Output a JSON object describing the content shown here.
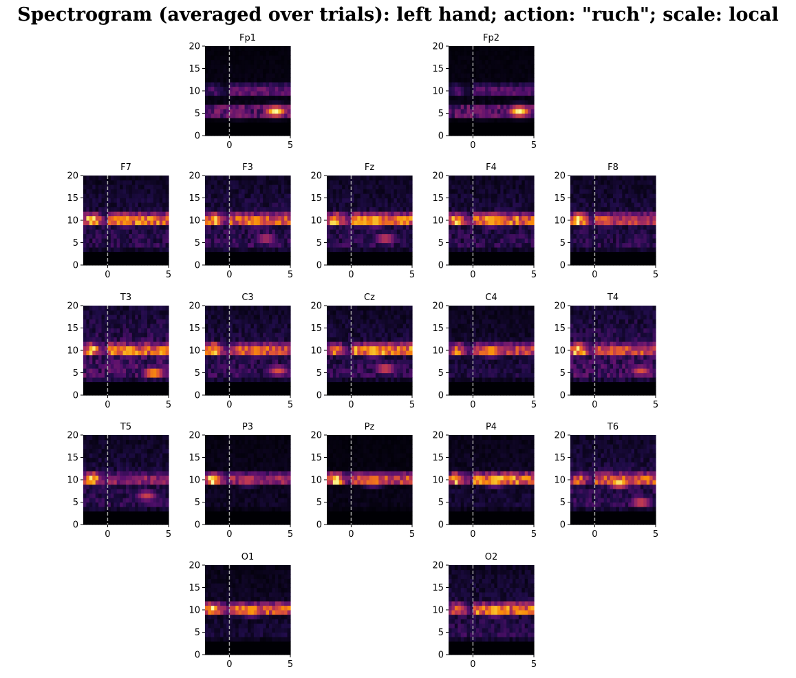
{
  "title": "Spectrogram (averaged over trials): left hand; action: \"ruch\"; scale: local",
  "chart_data": {
    "type": "heatmap",
    "colormap": "inferno",
    "xlim": [
      -2,
      5
    ],
    "ylim": [
      0,
      20
    ],
    "xticks": [
      0,
      5
    ],
    "yticks": [
      0,
      5,
      10,
      15,
      20
    ],
    "event_marker_x": 0,
    "grid": [
      [
        null,
        "Fp1",
        null,
        "Fp2",
        null
      ],
      [
        "F7",
        "F3",
        "Fz",
        "F4",
        "F8"
      ],
      [
        "T3",
        "C3",
        "Cz",
        "C4",
        "T4"
      ],
      [
        "T5",
        "P3",
        "Pz",
        "P4",
        "T6"
      ],
      [
        null,
        "O1",
        null,
        "O2",
        null
      ]
    ],
    "channels": [
      {
        "name": "Fp1",
        "alpha_peak": 0.4,
        "alpha_pre": 0.25,
        "theta_peak": 0.95,
        "background": 0.05,
        "hotspots": [
          [
            3.8,
            5.5,
            1.0
          ],
          [
            0.8,
            5,
            0.4
          ]
        ]
      },
      {
        "name": "Fp2",
        "alpha_peak": 0.35,
        "alpha_pre": 0.25,
        "theta_peak": 0.9,
        "background": 0.05,
        "hotspots": [
          [
            3.8,
            5.5,
            1.0
          ],
          [
            0.8,
            5,
            0.35
          ]
        ]
      },
      {
        "name": "F7",
        "alpha_peak": 0.95,
        "alpha_pre": 1.0,
        "theta_peak": 0.45,
        "background": 0.2,
        "hotspots": [
          [
            1.5,
            10,
            0.85
          ]
        ]
      },
      {
        "name": "F3",
        "alpha_peak": 0.9,
        "alpha_pre": 1.0,
        "theta_peak": 0.45,
        "background": 0.22,
        "hotspots": [
          [
            2.2,
            10,
            0.9
          ],
          [
            3,
            6,
            0.5
          ]
        ]
      },
      {
        "name": "Fz",
        "alpha_peak": 0.95,
        "alpha_pre": 0.95,
        "theta_peak": 0.5,
        "background": 0.2,
        "hotspots": [
          [
            2.0,
            10,
            1.0
          ],
          [
            2.8,
            6,
            0.55
          ]
        ]
      },
      {
        "name": "F4",
        "alpha_peak": 0.95,
        "alpha_pre": 0.95,
        "theta_peak": 0.45,
        "background": 0.2,
        "hotspots": [
          [
            1.5,
            10,
            0.95
          ]
        ]
      },
      {
        "name": "F8",
        "alpha_peak": 0.75,
        "alpha_pre": 1.0,
        "theta_peak": 0.45,
        "background": 0.2,
        "hotspots": [
          [
            1.0,
            10,
            0.7
          ]
        ]
      },
      {
        "name": "T3",
        "alpha_peak": 0.95,
        "alpha_pre": 1.0,
        "theta_peak": 0.7,
        "background": 0.3,
        "hotspots": [
          [
            1.8,
            10,
            0.95
          ],
          [
            4.5,
            10,
            0.9
          ],
          [
            3.8,
            5,
            0.85
          ]
        ]
      },
      {
        "name": "C3",
        "alpha_peak": 0.85,
        "alpha_pre": 1.0,
        "theta_peak": 0.5,
        "background": 0.22,
        "hotspots": [
          [
            2.2,
            10,
            0.85
          ],
          [
            4,
            5.5,
            0.6
          ]
        ]
      },
      {
        "name": "Cz",
        "alpha_peak": 1.0,
        "alpha_pre": 0.8,
        "theta_peak": 0.6,
        "background": 0.2,
        "hotspots": [
          [
            1.8,
            10,
            1.0
          ],
          [
            2.8,
            6,
            0.6
          ]
        ]
      },
      {
        "name": "C4",
        "alpha_peak": 0.75,
        "alpha_pre": 0.75,
        "theta_peak": 0.4,
        "background": 0.15,
        "hotspots": [
          [
            1.5,
            10,
            0.9
          ]
        ]
      },
      {
        "name": "T4",
        "alpha_peak": 0.8,
        "alpha_pre": 1.0,
        "theta_peak": 0.6,
        "background": 0.28,
        "hotspots": [
          [
            2.0,
            10,
            0.75
          ],
          [
            3.8,
            5.5,
            0.6
          ]
        ]
      },
      {
        "name": "T5",
        "alpha_peak": 0.55,
        "alpha_pre": 1.0,
        "theta_peak": 0.45,
        "background": 0.2,
        "hotspots": [
          [
            3.2,
            6.5,
            0.55
          ]
        ]
      },
      {
        "name": "P3",
        "alpha_peak": 0.6,
        "alpha_pre": 1.0,
        "theta_peak": 0.15,
        "background": 0.08,
        "hotspots": [
          [
            1.5,
            10,
            0.6
          ]
        ]
      },
      {
        "name": "Pz",
        "alpha_peak": 0.8,
        "alpha_pre": 1.0,
        "theta_peak": 0.1,
        "background": 0.05,
        "hotspots": [
          [
            1.8,
            10,
            0.8
          ]
        ]
      },
      {
        "name": "P4",
        "alpha_peak": 1.0,
        "alpha_pre": 0.9,
        "theta_peak": 0.2,
        "background": 0.12,
        "hotspots": [
          [
            1.8,
            10,
            1.0
          ]
        ]
      },
      {
        "name": "T6",
        "alpha_peak": 0.85,
        "alpha_pre": 0.7,
        "theta_peak": 0.5,
        "background": 0.22,
        "hotspots": [
          [
            2.0,
            9.5,
            0.95
          ],
          [
            3.8,
            5,
            0.6
          ]
        ]
      },
      {
        "name": "O1",
        "alpha_peak": 0.9,
        "alpha_pre": 1.0,
        "theta_peak": 0.3,
        "background": 0.12,
        "hotspots": [
          [
            1.8,
            10,
            0.9
          ]
        ]
      },
      {
        "name": "O2",
        "alpha_peak": 0.95,
        "alpha_pre": 0.75,
        "theta_peak": 0.4,
        "background": 0.2,
        "hotspots": [
          [
            1.8,
            10,
            1.0
          ]
        ]
      }
    ]
  }
}
